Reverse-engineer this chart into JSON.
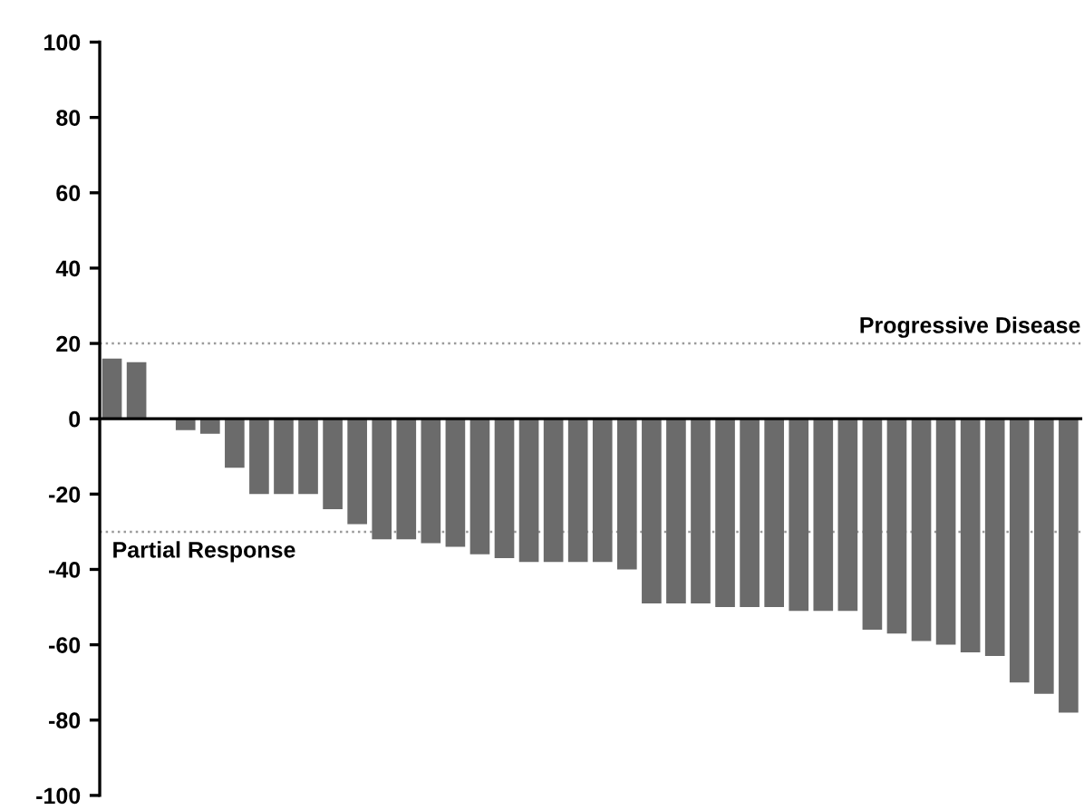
{
  "chart_data": {
    "type": "bar",
    "categories": [
      null,
      null,
      null,
      null,
      null,
      null,
      null,
      null,
      null,
      null,
      null,
      null,
      null,
      null,
      null,
      null,
      null,
      null,
      null,
      null,
      null,
      null,
      null,
      null,
      null,
      null,
      null,
      null,
      null,
      null,
      null,
      null,
      null,
      null,
      null,
      null,
      null,
      null,
      null,
      null
    ],
    "values": [
      16,
      15,
      0,
      -3,
      -4,
      -13,
      -20,
      -20,
      -20,
      -24,
      -28,
      -32,
      -32,
      -33,
      -34,
      -36,
      -37,
      -38,
      -38,
      -38,
      -38,
      -40,
      -49,
      -49,
      -49,
      -50,
      -50,
      -50,
      -51,
      -51,
      -51,
      -56,
      -57,
      -59,
      -60,
      -62,
      -63,
      -70,
      -73,
      -78
    ],
    "color": "#6b6b6b",
    "ylim": [
      -100,
      100
    ],
    "yticks": [
      -100,
      -80,
      -60,
      -40,
      -20,
      0,
      20,
      40,
      60,
      80,
      100
    ],
    "ref_lines": [
      {
        "axis": "y",
        "value": 20,
        "label": "Progressive Disease",
        "color": "#9a9a9a",
        "line_style": "dotted"
      },
      {
        "axis": "y",
        "value": -30,
        "label": "Partial Response",
        "color": "#9a9a9a",
        "line_style": "dotted"
      }
    ],
    "grid": false
  }
}
